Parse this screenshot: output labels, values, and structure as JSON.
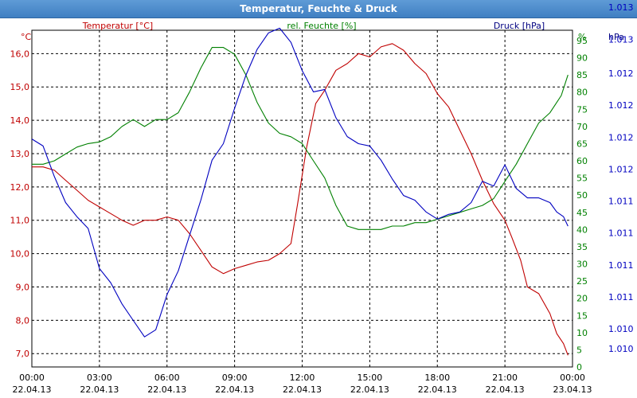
{
  "window": {
    "title": "Temperatur, Feuchte & Druck"
  },
  "colors": {
    "temperature": "#c00000",
    "humidity": "#008000",
    "pressure": "#0000c0",
    "grid": "#000000"
  },
  "chart_data": {
    "type": "line",
    "title": "Temperatur, Feuchte & Druck",
    "grid": true,
    "x_ticks": [
      {
        "time": "00:00",
        "date": "22.04.13"
      },
      {
        "time": "03:00",
        "date": "22.04.13"
      },
      {
        "time": "06:00",
        "date": "22.04.13"
      },
      {
        "time": "09:00",
        "date": "22.04.13"
      },
      {
        "time": "12:00",
        "date": "22.04.13"
      },
      {
        "time": "15:00",
        "date": "22.04.13"
      },
      {
        "time": "18:00",
        "date": "22.04.13"
      },
      {
        "time": "21:00",
        "date": "22.04.13"
      },
      {
        "time": "00:00",
        "date": "23.04.13"
      }
    ],
    "x_hours": [
      0,
      3,
      6,
      9,
      12,
      15,
      18,
      21,
      24
    ],
    "axes": {
      "temperature": {
        "header": "Temperatur [°C]",
        "unit": "°C",
        "ylim": [
          6.6,
          16.7
        ],
        "ticks": [
          "7,0",
          "8,0",
          "9,0",
          "10,0",
          "11,0",
          "12,0",
          "13,0",
          "14,0",
          "15,0",
          "16,0"
        ],
        "tick_values": [
          7,
          8,
          9,
          10,
          11,
          12,
          13,
          14,
          15,
          16
        ]
      },
      "humidity": {
        "header": "rel. Feuchte [%]",
        "unit": "%",
        "ylim": [
          0,
          98
        ],
        "ticks": [
          "0",
          "5",
          "10",
          "15",
          "20",
          "25",
          "30",
          "35",
          "40",
          "45",
          "50",
          "55",
          "60",
          "65",
          "70",
          "75",
          "80",
          "85",
          "90",
          "95"
        ],
        "tick_values": [
          0,
          5,
          10,
          15,
          20,
          25,
          30,
          35,
          40,
          45,
          50,
          55,
          60,
          65,
          70,
          75,
          80,
          85,
          90,
          95
        ]
      },
      "pressure": {
        "header": "Druck [hPa]",
        "unit": "hPa",
        "ylim": [
          0,
          1
        ],
        "ticks": [
          "1.010",
          "1.010",
          "1.011",
          "1.011",
          "1.011",
          "1.011",
          "1.012",
          "1.012",
          "1.012",
          "1.012",
          "1.013",
          "1.013"
        ],
        "tick_positions": [
          0.0,
          0.0843,
          0.2198,
          0.3554,
          0.4909,
          0.6265,
          0.7611,
          0.8976,
          1.0332,
          1.1687,
          1.3133,
          1.4488
        ]
      }
    },
    "series": [
      {
        "name": "Temperatur [°C]",
        "axis": "temperature",
        "x": [
          0,
          0.5,
          1,
          1.5,
          2,
          2.5,
          3,
          3.5,
          4,
          4.5,
          5,
          5.5,
          6,
          6.5,
          7,
          7.5,
          8,
          8.5,
          9,
          9.5,
          10,
          10.5,
          11,
          11.5,
          11.8,
          12.2,
          12.6,
          13,
          13.5,
          14,
          14.5,
          15,
          15.5,
          16,
          16.5,
          17,
          17.5,
          18,
          18.5,
          19,
          19.5,
          20,
          20.5,
          21,
          21.3,
          21.7,
          22,
          22.5,
          23,
          23.3,
          23.6,
          23.8
        ],
        "y": [
          12.6,
          12.6,
          12.5,
          12.2,
          11.9,
          11.6,
          11.4,
          11.2,
          11.0,
          10.85,
          11.0,
          11.0,
          11.1,
          11.0,
          10.6,
          10.1,
          9.6,
          9.4,
          9.55,
          9.65,
          9.75,
          9.8,
          10.0,
          10.3,
          11.5,
          13.2,
          14.5,
          14.9,
          15.5,
          15.7,
          16.0,
          15.9,
          16.2,
          16.3,
          16.1,
          15.7,
          15.4,
          14.8,
          14.4,
          13.7,
          13.0,
          12.2,
          11.5,
          11.0,
          10.5,
          9.8,
          9.0,
          8.8,
          8.2,
          7.6,
          7.3,
          6.95
        ]
      },
      {
        "name": "rel. Feuchte [%]",
        "axis": "humidity",
        "x": [
          0,
          0.5,
          1,
          1.5,
          2,
          2.5,
          3,
          3.5,
          4,
          4.5,
          5,
          5.5,
          6,
          6.5,
          7,
          7.5,
          8,
          8.5,
          9,
          9.5,
          10,
          10.5,
          11,
          11.5,
          12,
          12.5,
          13,
          13.5,
          14,
          14.5,
          15,
          15.5,
          16,
          16.5,
          17,
          17.5,
          18,
          18.5,
          19,
          19.5,
          20,
          20.5,
          21,
          21.5,
          22,
          22.5,
          23,
          23.5,
          23.8
        ],
        "y": [
          59,
          59,
          60,
          62,
          64,
          65,
          65.5,
          67,
          70,
          72,
          70,
          72,
          72,
          74,
          80,
          87,
          93,
          93,
          91,
          85,
          77,
          71,
          68,
          67,
          65,
          60,
          55,
          47,
          41,
          40,
          40,
          40,
          41,
          41,
          42,
          42,
          43,
          44,
          45,
          46,
          47,
          49,
          54,
          59,
          65,
          71,
          74,
          79,
          85
        ]
      },
      {
        "name": "Druck [hPa]",
        "axis": "pressure",
        "x": [
          0,
          0.5,
          1,
          1.5,
          2,
          2.5,
          3,
          3.5,
          4,
          4.5,
          5,
          5.5,
          6,
          6.5,
          7,
          7.5,
          8,
          8.5,
          9,
          9.5,
          10,
          10.5,
          11,
          11.5,
          12,
          12.5,
          13,
          13.5,
          14,
          14.5,
          15,
          15.5,
          16,
          16.5,
          17,
          17.5,
          18,
          18.5,
          19,
          19.5,
          20,
          20.5,
          21,
          21.5,
          22,
          22.5,
          23,
          23.3,
          23.6,
          23.8
        ],
        "y": [
          0.89,
          0.86,
          0.73,
          0.62,
          0.56,
          0.51,
          0.34,
          0.28,
          0.19,
          0.12,
          0.05,
          0.08,
          0.23,
          0.33,
          0.48,
          0.63,
          0.8,
          0.87,
          1.02,
          1.16,
          1.27,
          1.34,
          1.36,
          1.3,
          1.18,
          1.09,
          1.1,
          0.98,
          0.9,
          0.87,
          0.86,
          0.8,
          0.72,
          0.65,
          0.63,
          0.58,
          0.55,
          0.57,
          0.58,
          0.62,
          0.71,
          0.69,
          0.78,
          0.68,
          0.64,
          0.64,
          0.62,
          0.58,
          0.56,
          0.52
        ]
      }
    ]
  }
}
